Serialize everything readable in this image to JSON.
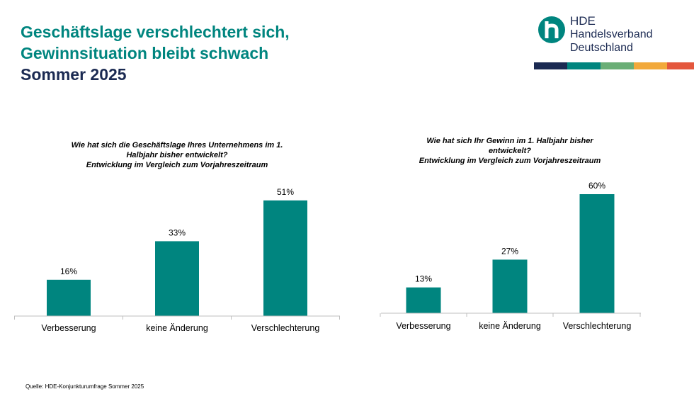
{
  "header": {
    "title_line1": "Geschäftslage verschlechtert sich,",
    "title_line2": "Gewinnsituation bleibt schwach",
    "subtitle": "Sommer 2025"
  },
  "logo": {
    "line1": "HDE",
    "line2": "Handelsverband",
    "line3": "Deutschland",
    "mark_color": "#00857F"
  },
  "color_bar": [
    "#1B2A52",
    "#00857F",
    "#6AAE76",
    "#F2A93B",
    "#E4573D"
  ],
  "colors": {
    "bar": "#00857F",
    "axis": "#BFBFBF"
  },
  "chart_data": [
    {
      "type": "bar",
      "question": [
        "Wie hat sich die Geschäftslage Ihres Unternehmens im 1.",
        "Halbjahr bisher entwickelt?",
        "Entwicklung im Vergleich zum Vorjahreszeitraum"
      ],
      "categories": [
        "Verbesserung",
        "keine Änderung",
        "Verschlechterung"
      ],
      "values": [
        16,
        33,
        51
      ],
      "labels": [
        "16%",
        "33%",
        "51%"
      ],
      "unit": "%"
    },
    {
      "type": "bar",
      "question": [
        "Wie hat sich Ihr Gewinn im 1. Halbjahr bisher",
        "entwickelt?",
        "Entwicklung im Vergleich zum Vorjahreszeitraum"
      ],
      "categories": [
        "Verbesserung",
        "keine Änderung",
        "Verschlechterung"
      ],
      "values": [
        13,
        27,
        60
      ],
      "labels": [
        "13%",
        "27%",
        "60%"
      ],
      "unit": "%"
    }
  ],
  "source": "Quelle: HDE-Konjunkturumfrage Sommer 2025"
}
